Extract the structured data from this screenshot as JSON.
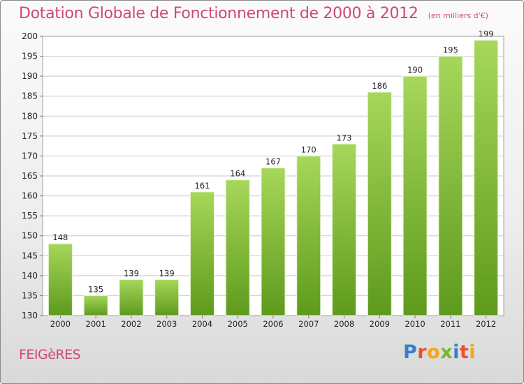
{
  "header": {
    "title": "Dotation Globale de Fonctionnement de 2000 à 2012",
    "unit": "(en milliers d'€)"
  },
  "footer": {
    "commune": "FEIGèRES",
    "brand": "Proxiti",
    "brand_colors": [
      "#3a7ec9",
      "#e5532d",
      "#f2a71b",
      "#78b534",
      "#3a7ec9",
      "#e5532d",
      "#f2a71b"
    ]
  },
  "colors": {
    "title": "#d2457c",
    "bar_top": "#a6d75a",
    "bar_bottom": "#5e9a1c",
    "grid": "#c9c9c9",
    "axis_text": "#222222"
  },
  "chart_data": {
    "type": "bar",
    "title": "Dotation Globale de Fonctionnement de 2000 à 2012",
    "subtitle": "(en milliers d'€)",
    "categories": [
      "2000",
      "2001",
      "2002",
      "2003",
      "2004",
      "2005",
      "2006",
      "2007",
      "2008",
      "2009",
      "2010",
      "2011",
      "2012"
    ],
    "values": [
      148,
      135,
      139,
      139,
      161,
      164,
      167,
      170,
      173,
      186,
      190,
      195,
      199
    ],
    "ylim": [
      130,
      200
    ],
    "yticks": [
      130,
      135,
      140,
      145,
      150,
      155,
      160,
      165,
      170,
      175,
      180,
      185,
      190,
      195,
      200
    ],
    "grid": true,
    "xlabel": "",
    "ylabel": ""
  }
}
